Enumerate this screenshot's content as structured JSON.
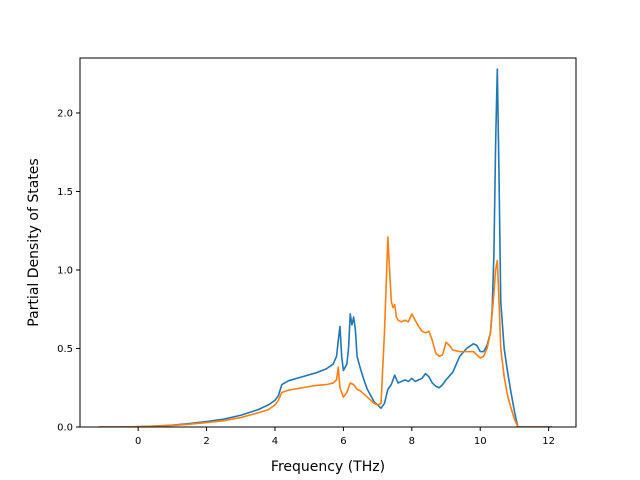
{
  "chart_data": {
    "type": "line",
    "title": "",
    "xlabel": "Frequency (THz)",
    "ylabel": "Partial Density of States",
    "xlim": [
      -1.7,
      12.8
    ],
    "ylim": [
      0,
      2.35
    ],
    "xticks": [
      0,
      2,
      4,
      6,
      8,
      10,
      12
    ],
    "xtick_labels": [
      "0",
      "2",
      "4",
      "6",
      "8",
      "10",
      "12"
    ],
    "yticks": [
      0.0,
      0.5,
      1.0,
      1.5,
      2.0
    ],
    "ytick_labels": [
      "0.0",
      "0.5",
      "1.0",
      "1.5",
      "2.0"
    ],
    "grid": false,
    "legend": "none",
    "series": [
      {
        "color": "#1f77b4",
        "x": [
          -1.15,
          -0.5,
          0.0,
          0.5,
          1.0,
          1.5,
          2.0,
          2.5,
          3.0,
          3.5,
          3.8,
          4.0,
          4.1,
          4.2,
          4.4,
          4.8,
          5.2,
          5.5,
          5.7,
          5.8,
          5.85,
          5.9,
          5.95,
          6.0,
          6.1,
          6.15,
          6.2,
          6.25,
          6.3,
          6.35,
          6.4,
          6.5,
          6.6,
          6.7,
          6.8,
          6.9,
          7.0,
          7.1,
          7.2,
          7.3,
          7.4,
          7.45,
          7.5,
          7.6,
          7.7,
          7.8,
          7.9,
          8.0,
          8.1,
          8.2,
          8.3,
          8.4,
          8.5,
          8.6,
          8.7,
          8.8,
          8.9,
          9.0,
          9.2,
          9.4,
          9.6,
          9.8,
          9.9,
          10.0,
          10.1,
          10.2,
          10.3,
          10.35,
          10.4,
          10.45,
          10.48,
          10.5,
          10.55,
          10.6,
          10.7,
          10.8,
          10.9,
          11.0,
          11.1,
          11.5,
          12.1
        ],
        "y": [
          0.0,
          0.0,
          0.002,
          0.006,
          0.012,
          0.022,
          0.035,
          0.05,
          0.075,
          0.11,
          0.14,
          0.17,
          0.2,
          0.27,
          0.295,
          0.32,
          0.345,
          0.37,
          0.4,
          0.45,
          0.55,
          0.64,
          0.45,
          0.36,
          0.4,
          0.5,
          0.72,
          0.65,
          0.7,
          0.62,
          0.45,
          0.37,
          0.3,
          0.24,
          0.2,
          0.16,
          0.14,
          0.12,
          0.15,
          0.24,
          0.27,
          0.3,
          0.33,
          0.28,
          0.29,
          0.3,
          0.29,
          0.31,
          0.29,
          0.3,
          0.31,
          0.34,
          0.32,
          0.28,
          0.26,
          0.25,
          0.27,
          0.3,
          0.35,
          0.45,
          0.5,
          0.53,
          0.52,
          0.48,
          0.48,
          0.52,
          0.6,
          0.75,
          1.1,
          1.8,
          2.1,
          2.28,
          1.6,
          0.8,
          0.5,
          0.35,
          0.22,
          0.1,
          0.0,
          0.0,
          0.0
        ]
      },
      {
        "color": "#ff7f0e",
        "x": [
          -1.15,
          -0.5,
          0.0,
          0.5,
          1.0,
          1.5,
          2.0,
          2.5,
          3.0,
          3.5,
          3.8,
          4.0,
          4.1,
          4.2,
          4.4,
          4.8,
          5.2,
          5.5,
          5.7,
          5.8,
          5.85,
          5.9,
          6.0,
          6.1,
          6.2,
          6.3,
          6.4,
          6.5,
          6.6,
          6.7,
          6.8,
          6.9,
          7.0,
          7.1,
          7.2,
          7.25,
          7.3,
          7.35,
          7.4,
          7.45,
          7.5,
          7.55,
          7.6,
          7.7,
          7.8,
          7.9,
          8.0,
          8.1,
          8.2,
          8.3,
          8.4,
          8.5,
          8.6,
          8.7,
          8.8,
          8.9,
          9.0,
          9.1,
          9.2,
          9.4,
          9.6,
          9.8,
          9.9,
          10.0,
          10.1,
          10.2,
          10.3,
          10.4,
          10.45,
          10.5,
          10.55,
          10.6,
          10.7,
          10.8,
          10.9,
          11.0,
          11.1,
          11.5,
          12.1
        ],
        "y": [
          0.0,
          0.0,
          0.002,
          0.005,
          0.01,
          0.018,
          0.028,
          0.04,
          0.06,
          0.09,
          0.11,
          0.14,
          0.17,
          0.22,
          0.235,
          0.25,
          0.265,
          0.27,
          0.28,
          0.3,
          0.38,
          0.25,
          0.19,
          0.22,
          0.28,
          0.27,
          0.24,
          0.23,
          0.21,
          0.19,
          0.17,
          0.15,
          0.14,
          0.15,
          0.6,
          0.9,
          1.21,
          1.0,
          0.8,
          0.76,
          0.78,
          0.7,
          0.68,
          0.67,
          0.68,
          0.67,
          0.72,
          0.68,
          0.64,
          0.61,
          0.6,
          0.61,
          0.55,
          0.47,
          0.45,
          0.46,
          0.54,
          0.52,
          0.49,
          0.48,
          0.48,
          0.48,
          0.46,
          0.44,
          0.45,
          0.5,
          0.6,
          0.85,
          1.0,
          1.06,
          0.8,
          0.5,
          0.32,
          0.2,
          0.12,
          0.05,
          0.0,
          0.0,
          0.0
        ]
      }
    ]
  }
}
